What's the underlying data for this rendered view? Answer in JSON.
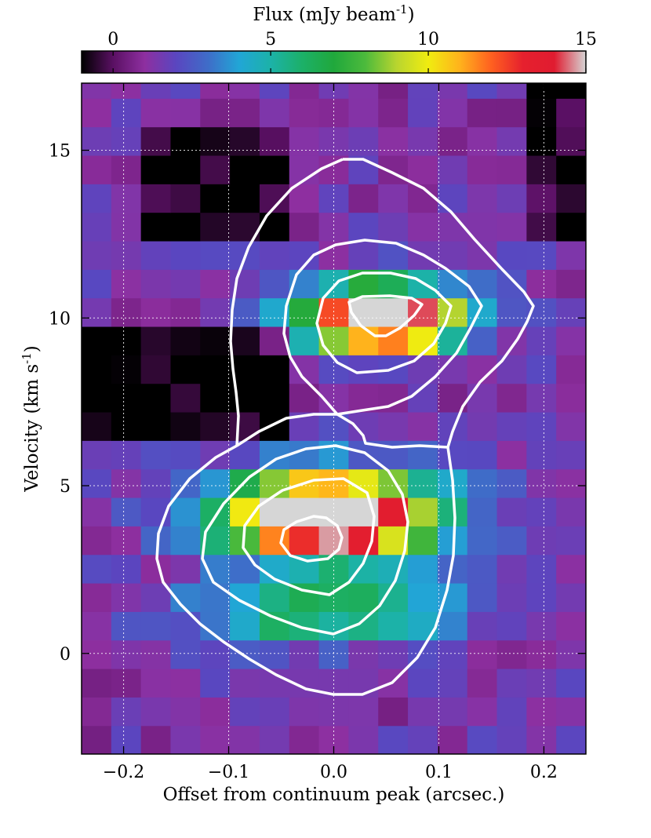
{
  "chart_data": {
    "type": "heatmap",
    "title": "",
    "xlabel": "Offset from continuum peak (arcsec.)",
    "ylabel": "Velocity (km s$^{-1}$)",
    "xlim": [
      -0.24,
      0.24
    ],
    "ylim": [
      -3,
      17
    ],
    "x_ticks": [
      -0.2,
      -0.1,
      0.0,
      0.1,
      0.2
    ],
    "x_tick_labels": [
      "−0.2",
      "−0.1",
      "0.0",
      "0.1",
      "0.2"
    ],
    "y_ticks": [
      0,
      5,
      10,
      15
    ],
    "y_tick_labels": [
      "0",
      "5",
      "10",
      "15"
    ],
    "grid": true,
    "colorbar": {
      "label": "Flux (mJy beam$^{-1}$)",
      "range": [
        -1,
        15
      ],
      "ticks": [
        0,
        5,
        10,
        15
      ],
      "tick_labels": [
        "0",
        "5",
        "10",
        "15"
      ],
      "location": "top",
      "colormap": [
        "#000000",
        "#5a1063",
        "#8e2fa0",
        "#5a46c0",
        "#3f6cc8",
        "#21a6d6",
        "#1cb2a8",
        "#1cb068",
        "#20a83c",
        "#4cba3c",
        "#b9d52f",
        "#f0ec10",
        "#ffb21c",
        "#ff6020",
        "#e6202e",
        "#e01c30",
        "#d6d6d6"
      ]
    },
    "contour_color": "#ffffff"
  }
}
